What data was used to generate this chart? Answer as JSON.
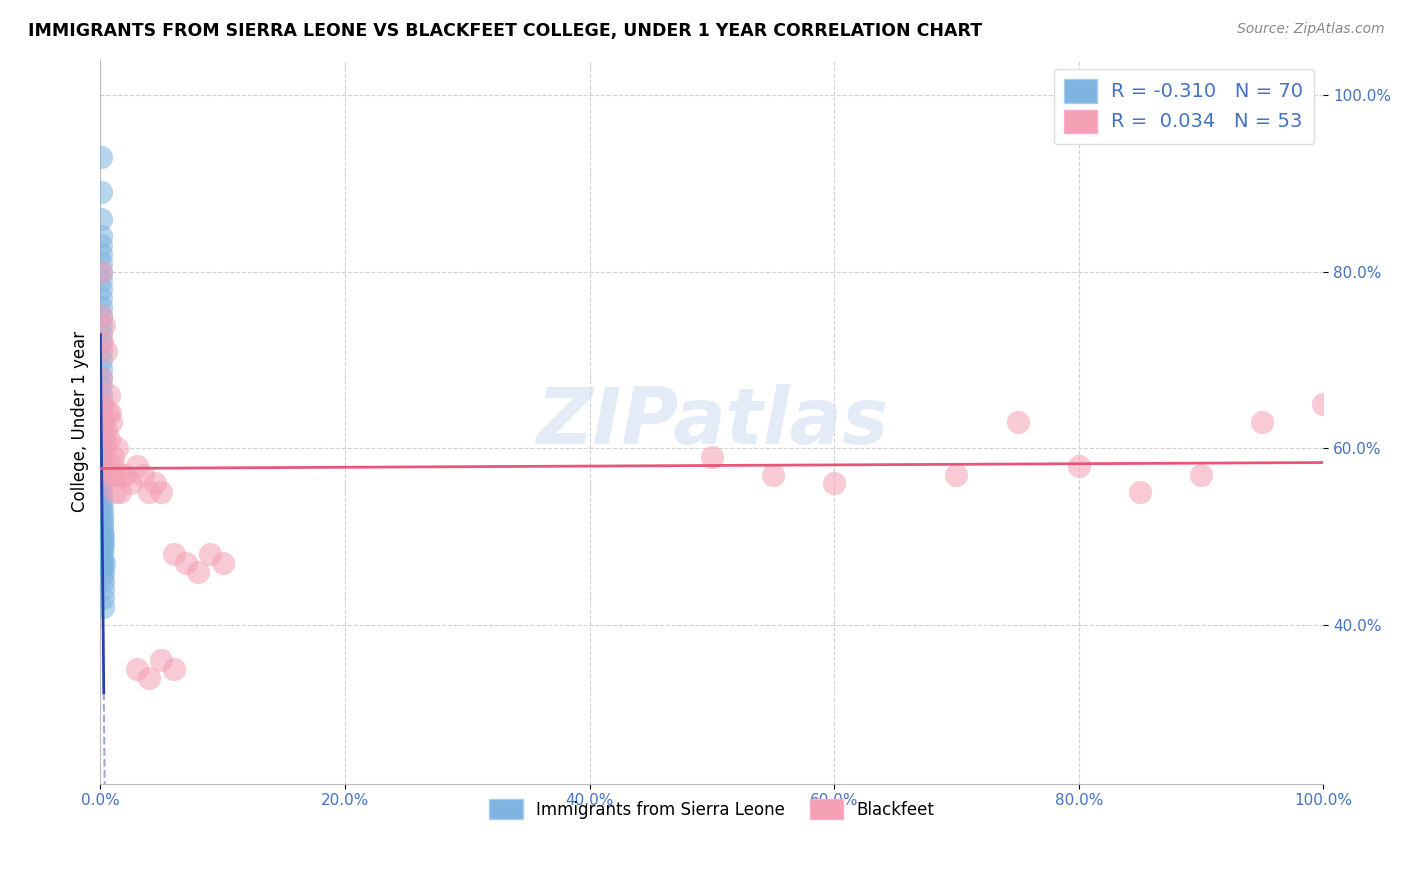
{
  "title": "IMMIGRANTS FROM SIERRA LEONE VS BLACKFEET COLLEGE, UNDER 1 YEAR CORRELATION CHART",
  "source": "Source: ZipAtlas.com",
  "ylabel": "College, Under 1 year",
  "legend_label1": "Immigrants from Sierra Leone",
  "legend_label2": "Blackfeet",
  "R1": -0.31,
  "N1": 70,
  "R2": 0.034,
  "N2": 53,
  "color1": "#7fb3e0",
  "color2": "#f4a0b5",
  "trend1_color": "#2244aa",
  "trend2_color": "#e8557a",
  "background_color": "#ffffff",
  "grid_color": "#cccccc",
  "watermark": "ZIPatlas",
  "blue_x": [
    0.0002,
    0.0003,
    0.0004,
    0.0003,
    0.0002,
    0.0003,
    0.0004,
    0.0002,
    0.0003,
    0.0002,
    0.0003,
    0.0002,
    0.0003,
    0.0004,
    0.0003,
    0.0002,
    0.0003,
    0.0004,
    0.0003,
    0.0002,
    0.0003,
    0.0004,
    0.0003,
    0.0002,
    0.0003,
    0.0002,
    0.0003,
    0.0004,
    0.0003,
    0.0002,
    0.0005,
    0.0004,
    0.0006,
    0.0005,
    0.0004,
    0.0006,
    0.0005,
    0.0007,
    0.0006,
    0.0005,
    0.0008,
    0.0007,
    0.0009,
    0.0008,
    0.0007,
    0.001,
    0.0009,
    0.0011,
    0.001,
    0.0012,
    0.0011,
    0.0013,
    0.0012,
    0.0014,
    0.0015,
    0.0014,
    0.0016,
    0.0015,
    0.0017,
    0.0016,
    0.0018,
    0.0017,
    0.0019,
    0.002,
    0.0022,
    0.0021,
    0.0025,
    0.0023,
    0.0028,
    0.0001
  ],
  "blue_y": [
    0.93,
    0.89,
    0.86,
    0.84,
    0.83,
    0.82,
    0.81,
    0.8,
    0.79,
    0.78,
    0.77,
    0.76,
    0.75,
    0.74,
    0.73,
    0.72,
    0.71,
    0.7,
    0.69,
    0.68,
    0.67,
    0.66,
    0.65,
    0.64,
    0.635,
    0.63,
    0.625,
    0.62,
    0.615,
    0.61,
    0.61,
    0.605,
    0.6,
    0.595,
    0.59,
    0.585,
    0.58,
    0.575,
    0.57,
    0.565,
    0.56,
    0.555,
    0.55,
    0.545,
    0.54,
    0.535,
    0.53,
    0.525,
    0.52,
    0.515,
    0.51,
    0.505,
    0.5,
    0.495,
    0.49,
    0.485,
    0.48,
    0.475,
    0.47,
    0.465,
    0.46,
    0.455,
    0.45,
    0.44,
    0.43,
    0.42,
    0.5,
    0.49,
    0.47,
    0.6
  ],
  "pink_x": [
    0.0003,
    0.0005,
    0.0008,
    0.001,
    0.0015,
    0.002,
    0.0025,
    0.003,
    0.0035,
    0.004,
    0.005,
    0.006,
    0.007,
    0.008,
    0.009,
    0.01,
    0.012,
    0.014,
    0.016,
    0.018,
    0.02,
    0.025,
    0.03,
    0.035,
    0.04,
    0.045,
    0.05,
    0.06,
    0.07,
    0.08,
    0.09,
    0.1,
    0.004,
    0.006,
    0.008,
    0.01,
    0.012,
    0.005,
    0.007,
    0.03,
    0.04,
    0.05,
    0.06,
    0.5,
    0.55,
    0.6,
    0.7,
    0.75,
    0.8,
    0.85,
    0.9,
    0.95,
    1.0
  ],
  "pink_y": [
    0.8,
    0.75,
    0.68,
    0.62,
    0.72,
    0.65,
    0.63,
    0.74,
    0.61,
    0.6,
    0.71,
    0.64,
    0.66,
    0.64,
    0.63,
    0.58,
    0.57,
    0.6,
    0.55,
    0.57,
    0.57,
    0.56,
    0.58,
    0.57,
    0.55,
    0.56,
    0.55,
    0.48,
    0.47,
    0.46,
    0.48,
    0.47,
    0.57,
    0.58,
    0.57,
    0.59,
    0.55,
    0.62,
    0.61,
    0.35,
    0.34,
    0.36,
    0.35,
    0.59,
    0.57,
    0.56,
    0.57,
    0.63,
    0.58,
    0.55,
    0.57,
    0.63,
    0.65
  ]
}
